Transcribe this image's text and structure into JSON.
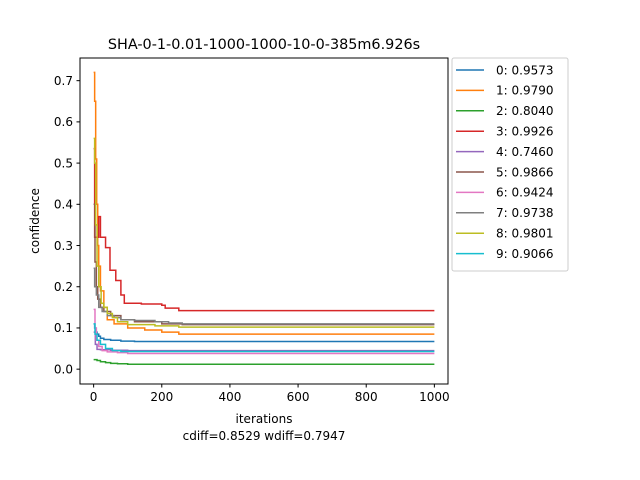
{
  "chart_data": {
    "type": "line",
    "title": "SHA-0-1-0.01-1000-1000-10-0-385m6.926s",
    "xlabel": "iterations",
    "ylabel": "confidence",
    "subtitle": "cdiff=0.8529 wdiff=0.7947",
    "xlim": [
      -40,
      1040
    ],
    "ylim": [
      -0.036,
      0.755
    ],
    "xticks": [
      0,
      200,
      400,
      600,
      800,
      1000
    ],
    "yticks": [
      0.0,
      0.1,
      0.2,
      0.3,
      0.4,
      0.5,
      0.6,
      0.7
    ],
    "grid": false,
    "legend_position": "outside-top-right",
    "series": [
      {
        "name": "0: 0.9573",
        "color": "#1f77b4",
        "points": [
          [
            0,
            0.11
          ],
          [
            3,
            0.1
          ],
          [
            6,
            0.09
          ],
          [
            10,
            0.085
          ],
          [
            15,
            0.08
          ],
          [
            20,
            0.075
          ],
          [
            30,
            0.072
          ],
          [
            50,
            0.07
          ],
          [
            80,
            0.068
          ],
          [
            120,
            0.067
          ],
          [
            1000,
            0.067
          ]
        ]
      },
      {
        "name": "1: 0.9790",
        "color": "#ff7f0e",
        "points": [
          [
            0,
            0.72
          ],
          [
            3,
            0.65
          ],
          [
            6,
            0.51
          ],
          [
            9,
            0.4
          ],
          [
            12,
            0.3
          ],
          [
            15,
            0.25
          ],
          [
            20,
            0.19
          ],
          [
            30,
            0.15
          ],
          [
            40,
            0.12
          ],
          [
            60,
            0.11
          ],
          [
            100,
            0.1
          ],
          [
            150,
            0.095
          ],
          [
            200,
            0.09
          ],
          [
            250,
            0.085
          ],
          [
            1000,
            0.085
          ]
        ]
      },
      {
        "name": "2: 0.8040",
        "color": "#2ca02c",
        "points": [
          [
            0,
            0.023
          ],
          [
            10,
            0.021
          ],
          [
            20,
            0.018
          ],
          [
            35,
            0.016
          ],
          [
            50,
            0.014
          ],
          [
            70,
            0.013
          ],
          [
            100,
            0.012
          ],
          [
            1000,
            0.012
          ]
        ]
      },
      {
        "name": "3: 0.9926",
        "color": "#d62728",
        "points": [
          [
            0,
            0.535
          ],
          [
            3,
            0.32
          ],
          [
            10,
            0.32
          ],
          [
            15,
            0.37
          ],
          [
            20,
            0.32
          ],
          [
            30,
            0.32
          ],
          [
            35,
            0.295
          ],
          [
            45,
            0.295
          ],
          [
            48,
            0.24
          ],
          [
            60,
            0.24
          ],
          [
            65,
            0.215
          ],
          [
            75,
            0.215
          ],
          [
            80,
            0.18
          ],
          [
            90,
            0.16
          ],
          [
            140,
            0.158
          ],
          [
            200,
            0.155
          ],
          [
            210,
            0.148
          ],
          [
            240,
            0.148
          ],
          [
            250,
            0.142
          ],
          [
            1000,
            0.142
          ]
        ]
      },
      {
        "name": "4: 0.7460",
        "color": "#9467bd",
        "points": [
          [
            0,
            0.09
          ],
          [
            5,
            0.06
          ],
          [
            10,
            0.048
          ],
          [
            20,
            0.047
          ],
          [
            50,
            0.046
          ],
          [
            100,
            0.045
          ],
          [
            1000,
            0.045
          ]
        ]
      },
      {
        "name": "5: 0.9866",
        "color": "#8c564b",
        "points": [
          [
            0,
            0.4
          ],
          [
            4,
            0.26
          ],
          [
            8,
            0.2
          ],
          [
            12,
            0.17
          ],
          [
            20,
            0.15
          ],
          [
            30,
            0.14
          ],
          [
            50,
            0.13
          ],
          [
            80,
            0.12
          ],
          [
            120,
            0.115
          ],
          [
            200,
            0.11
          ],
          [
            260,
            0.108
          ],
          [
            1000,
            0.108
          ]
        ]
      },
      {
        "name": "6: 0.9424",
        "color": "#e377c2",
        "points": [
          [
            0,
            0.145
          ],
          [
            4,
            0.1
          ],
          [
            8,
            0.07
          ],
          [
            15,
            0.055
          ],
          [
            25,
            0.045
          ],
          [
            40,
            0.042
          ],
          [
            70,
            0.04
          ],
          [
            100,
            0.038
          ],
          [
            1000,
            0.038
          ]
        ]
      },
      {
        "name": "7: 0.9738",
        "color": "#7f7f7f",
        "points": [
          [
            0,
            0.245
          ],
          [
            3,
            0.2
          ],
          [
            8,
            0.18
          ],
          [
            15,
            0.15
          ],
          [
            25,
            0.14
          ],
          [
            40,
            0.13
          ],
          [
            60,
            0.125
          ],
          [
            80,
            0.12
          ],
          [
            120,
            0.118
          ],
          [
            180,
            0.115
          ],
          [
            220,
            0.112
          ],
          [
            260,
            0.11
          ],
          [
            1000,
            0.11
          ]
        ]
      },
      {
        "name": "8: 0.9801",
        "color": "#bcbd22",
        "points": [
          [
            0,
            0.56
          ],
          [
            3,
            0.5
          ],
          [
            6,
            0.35
          ],
          [
            10,
            0.25
          ],
          [
            15,
            0.2
          ],
          [
            22,
            0.16
          ],
          [
            30,
            0.15
          ],
          [
            40,
            0.135
          ],
          [
            55,
            0.125
          ],
          [
            70,
            0.115
          ],
          [
            100,
            0.108
          ],
          [
            180,
            0.105
          ],
          [
            250,
            0.102
          ],
          [
            1000,
            0.102
          ]
        ]
      },
      {
        "name": "9: 0.9066",
        "color": "#17becf",
        "points": [
          [
            0,
            0.11
          ],
          [
            4,
            0.085
          ],
          [
            10,
            0.07
          ],
          [
            20,
            0.06
          ],
          [
            35,
            0.05
          ],
          [
            55,
            0.045
          ],
          [
            80,
            0.043
          ],
          [
            1000,
            0.043
          ]
        ]
      }
    ]
  }
}
